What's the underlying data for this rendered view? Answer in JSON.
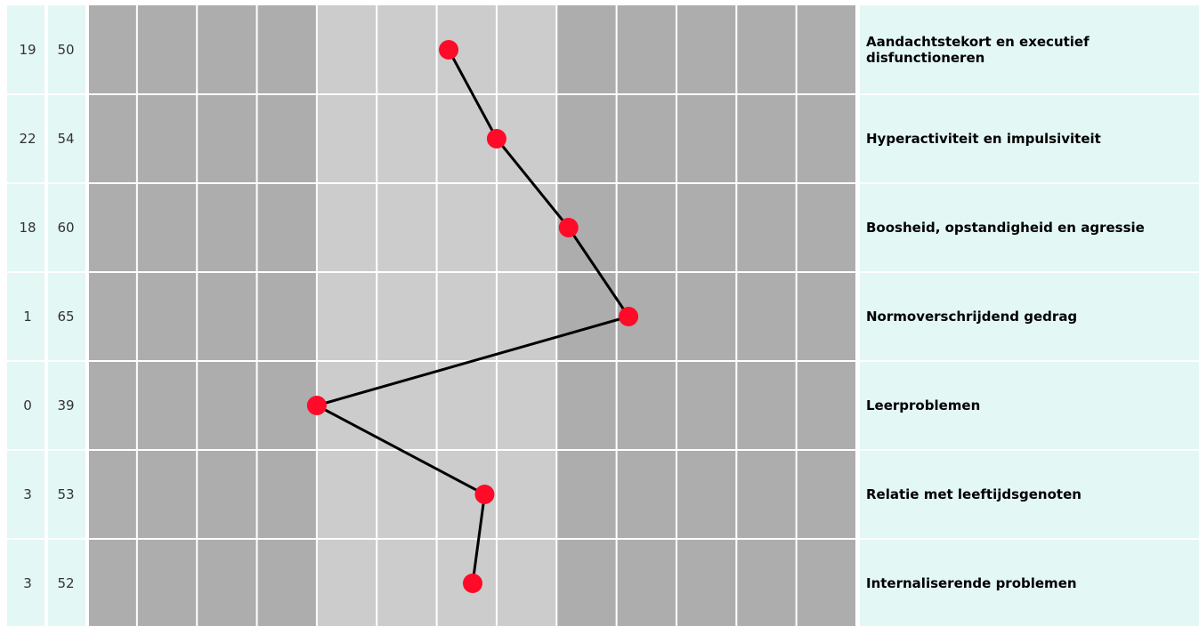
{
  "chart_data": {
    "type": "line",
    "title": "",
    "xlabel": "",
    "ylabel": "",
    "x_range": [
      20,
      84
    ],
    "x_gridlines": [
      24,
      29,
      34,
      39,
      44,
      49,
      54,
      59,
      64,
      69,
      74,
      79,
      84
    ],
    "normal_band": [
      39,
      59
    ],
    "grid": true,
    "categories": [
      "Aandachtstekort en executief disfunctioneren",
      "Hyperactiviteit en impulsiviteit",
      "Boosheid, opstandigheid en agressie",
      "Normoverschrijdend gedrag",
      "Leerproblemen",
      "Relatie met leeftijdsgenoten",
      "Internaliserende problemen"
    ],
    "category_label_lines": [
      [
        "Aandachtstekort en executief",
        "disfunctioneren"
      ],
      [
        "Hyperactiviteit en impulsiviteit"
      ],
      [
        "Boosheid, opstandigheid en agressie"
      ],
      [
        "Normoverschrijdend gedrag"
      ],
      [
        "Leerproblemen"
      ],
      [
        "Relatie met leeftijdsgenoten"
      ],
      [
        "Internaliserende problemen"
      ]
    ],
    "raw_scores": [
      "19",
      "22",
      "18",
      "1",
      "0",
      "3",
      "3"
    ],
    "t_scores": [
      "50",
      "54",
      "60",
      "65",
      "39",
      "53",
      "52"
    ],
    "series": [
      {
        "values": [
          50,
          54,
          60,
          65,
          39,
          53,
          52
        ]
      }
    ]
  },
  "colors": {
    "panel": "#e3f7f5",
    "dark_band": "#adadad",
    "light_band": "#cccccc",
    "grid": "#ffffff",
    "line": "#000000",
    "marker": "#ff0a28"
  }
}
